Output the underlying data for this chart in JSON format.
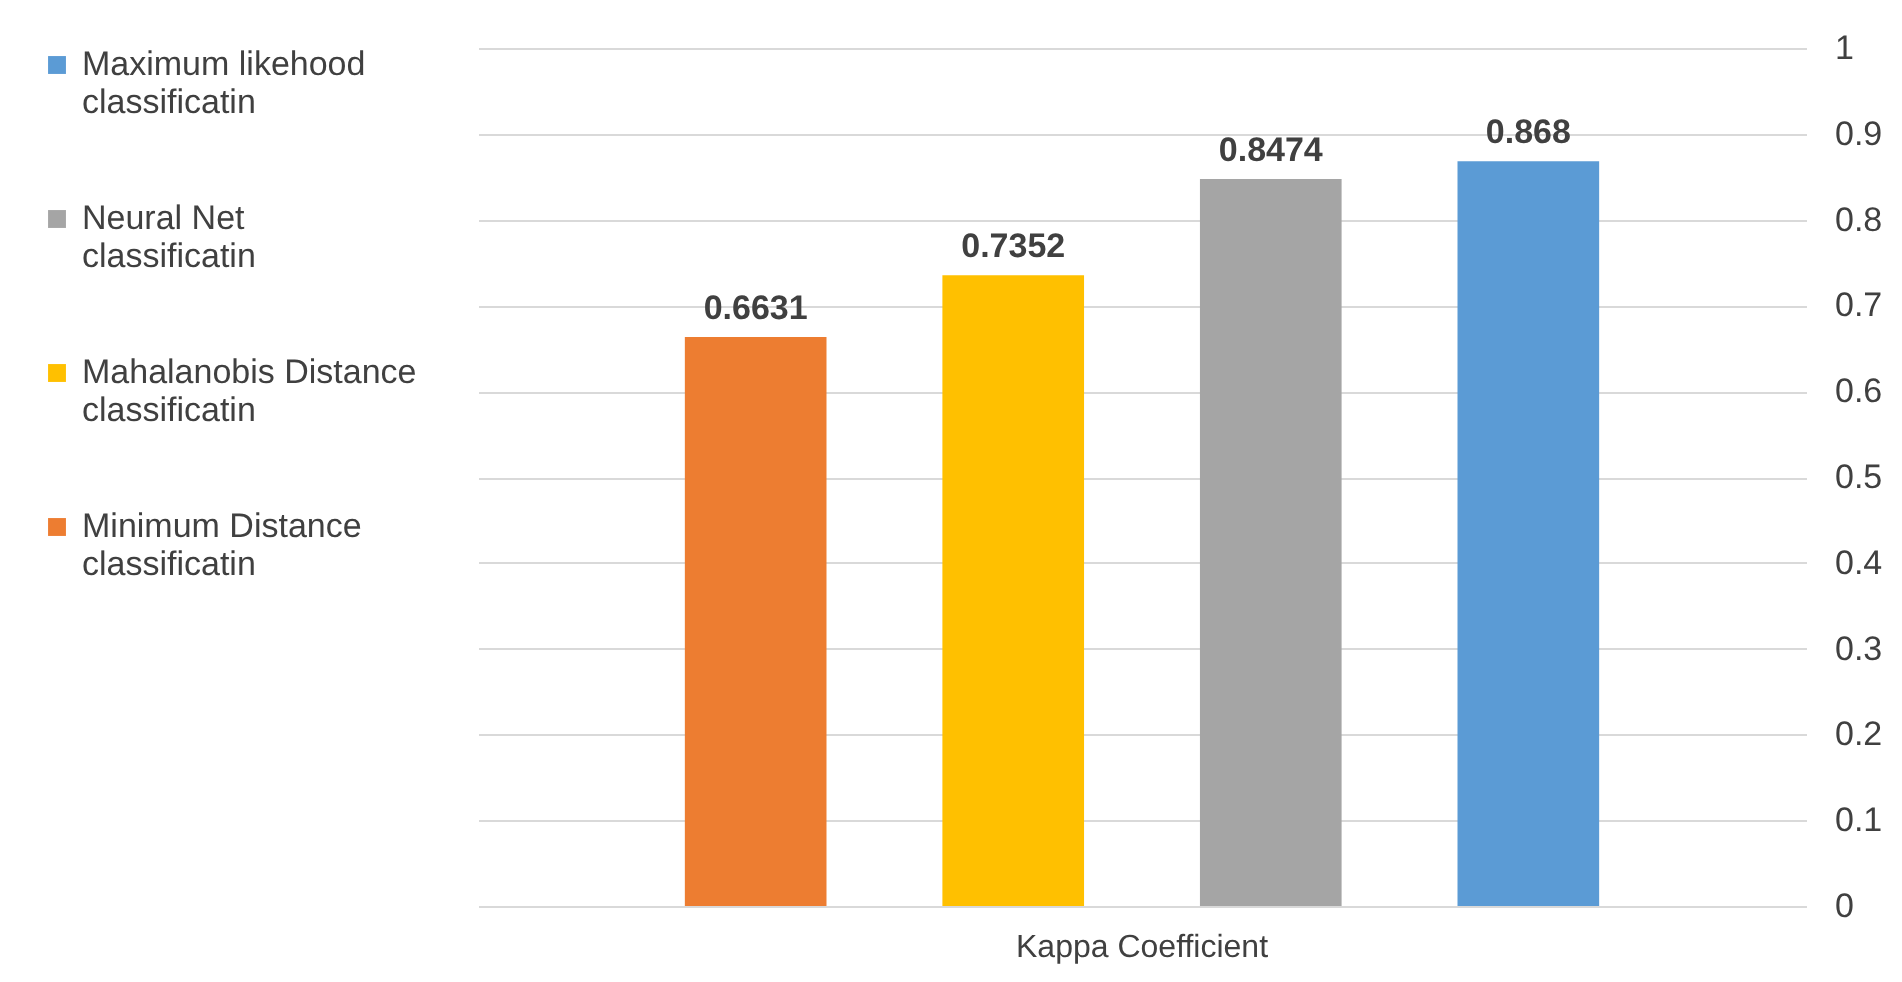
{
  "chart_data": {
    "type": "bar",
    "categories": [
      "Kappa Coefficient"
    ],
    "series": [
      {
        "name": "Minimum Distance classificatin",
        "color": "#ed7d31",
        "values": [
          0.6631
        ]
      },
      {
        "name": "Mahalanobis Distance classificatin",
        "color": "#ffc000",
        "values": [
          0.7352
        ]
      },
      {
        "name": "Neural Net classificatin",
        "color": "#a5a5a5",
        "values": [
          0.8474
        ]
      },
      {
        "name": "Maximum likehood classificatin",
        "color": "#5b9bd5",
        "values": [
          0.868
        ]
      }
    ],
    "ylim": [
      0,
      1
    ],
    "yticks": [
      0,
      0.1,
      0.2,
      0.3,
      0.4,
      0.5,
      0.6,
      0.7,
      0.8,
      0.9,
      1
    ],
    "grid": "y",
    "legend": "left",
    "data_labels": true
  }
}
